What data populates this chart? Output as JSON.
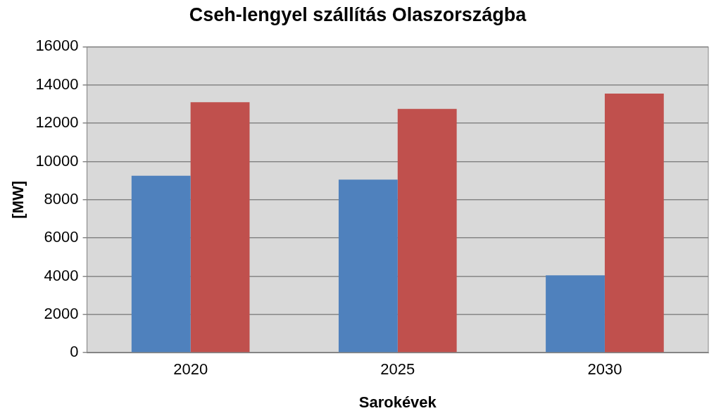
{
  "chart_data": {
    "type": "bar",
    "title": "Cseh-lengyel szállítás Olaszországba",
    "xlabel": "Sarokévek",
    "ylabel": "[MW]",
    "categories": [
      "2020",
      "2025",
      "2030"
    ],
    "series": [
      {
        "color": "#4f81bd",
        "values": [
          9250,
          9050,
          4050
        ]
      },
      {
        "color": "#c0504d",
        "values": [
          13100,
          12750,
          13550
        ]
      }
    ],
    "ylim": [
      0,
      16000
    ],
    "yticks": [
      0,
      2000,
      4000,
      6000,
      8000,
      10000,
      12000,
      14000,
      16000
    ],
    "grid": "y",
    "legend": false
  }
}
